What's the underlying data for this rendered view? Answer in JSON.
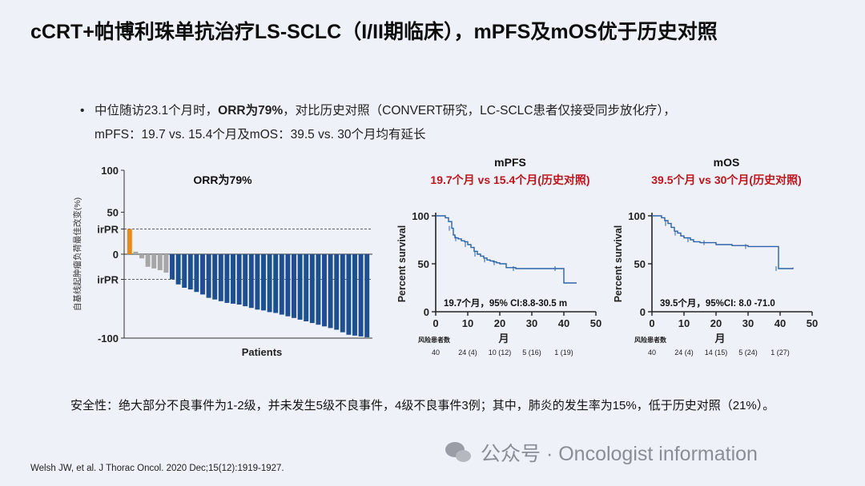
{
  "slide": {
    "title": "cCRT+帕博利珠单抗治疗LS-SCLC（I/II期临床），mPFS及mOS优于历史对照",
    "bullet": {
      "marker": "•",
      "part1": "中位随访23.1个月时，",
      "part2_bold": "ORR为79%",
      "part3": "，对比历史对照（CONVERT研究，LC-SCLC患者仅接受同步放化疗），",
      "line2": "mPFS：19.7 vs. 15.4个月及mOS：39.5 vs. 30个月均有延长"
    },
    "safety": "安全性：绝大部分不良事件为1-2级，并未发生5级不良事件，4级不良事件3例；其中，肺炎的发生率为15%，低于历史对照（21%）。",
    "reference": "Welsh JW, et al. J Thorac Oncol. 2020 Dec;15(12):1919-1927.",
    "watermark": "公众号 · Oncologist information",
    "colors": {
      "orange": "#e8891c",
      "gray": "#a6a6a6",
      "blue": "#1d4f91",
      "red": "#c0141c",
      "line": "#2b62a8"
    }
  },
  "chart_data": [
    {
      "type": "bar",
      "title": "ORR为79%",
      "xlabel": "Patients",
      "ylabel": "自基线起肿瘤负荷最佳改变(%)",
      "ylim": [
        -100,
        100
      ],
      "yticks": [
        "100",
        "50",
        "irPR",
        "0",
        "irPR",
        "-100"
      ],
      "reference_lines": [
        30,
        -30
      ],
      "values": [
        30,
        3,
        -5,
        -15,
        -17,
        -19,
        -22,
        -30,
        -36,
        -40,
        -42,
        -45,
        -48,
        -52,
        -54,
        -56,
        -58,
        -59,
        -60,
        -62,
        -64,
        -66,
        -67,
        -69,
        -70,
        -72,
        -74,
        -76,
        -78,
        -80,
        -82,
        -84,
        -86,
        -88,
        -90,
        -93,
        -96,
        -97,
        -98,
        -99
      ],
      "bar_colors": [
        "orange",
        "gray",
        "gray",
        "gray",
        "gray",
        "gray",
        "gray",
        "blue",
        "blue",
        "blue",
        "blue",
        "blue",
        "blue",
        "blue",
        "blue",
        "blue",
        "blue",
        "blue",
        "blue",
        "blue",
        "blue",
        "blue",
        "blue",
        "blue",
        "blue",
        "blue",
        "blue",
        "blue",
        "blue",
        "blue",
        "blue",
        "blue",
        "blue",
        "blue",
        "blue",
        "blue",
        "blue",
        "blue",
        "blue",
        "blue"
      ]
    },
    {
      "type": "line",
      "title": "mPFS",
      "subtitle": "19.7个月 vs 15.4个月(历史对照)",
      "xlabel": "月",
      "ylabel": "Percent survival",
      "xlim": [
        0,
        50
      ],
      "ylim": [
        0,
        100
      ],
      "xticks": [
        "0",
        "10",
        "20",
        "30",
        "40",
        "50"
      ],
      "yticks": [
        "0",
        "50",
        "100"
      ],
      "annotation": "19.7个月，95% CI:8.8-30.5 m",
      "risk_label": "风险患者数",
      "risk_table": [
        "40",
        "24 (4)",
        "10 (12)",
        "5 (16)",
        "1 (19)"
      ],
      "x": [
        0,
        3,
        4,
        5,
        5.5,
        6,
        7,
        8,
        9,
        10,
        11,
        12,
        13,
        14,
        15,
        16,
        17,
        18,
        19,
        20,
        22,
        25,
        30,
        35,
        38,
        40,
        44
      ],
      "y": [
        100,
        98,
        94,
        87,
        80,
        77,
        76,
        74,
        73,
        70,
        67,
        63,
        60,
        58,
        56,
        54,
        53,
        52,
        51,
        50,
        46,
        45,
        45,
        45,
        45,
        30,
        30
      ]
    },
    {
      "type": "line",
      "title": "mOS",
      "subtitle": "39.5个月 vs 30个月(历史对照)",
      "xlabel": "月",
      "ylabel": "Percent survival",
      "xlim": [
        0,
        50
      ],
      "ylim": [
        0,
        100
      ],
      "xticks": [
        "0",
        "10",
        "20",
        "30",
        "40",
        "50"
      ],
      "yticks": [
        "0",
        "50",
        "100"
      ],
      "annotation": "39.5个月，95%CI: 8.0 -71.0",
      "risk_label": "风险患者数",
      "risk_table": [
        "40",
        "24 (4)",
        "14 (15)",
        "5 (24)",
        "1 (27)"
      ],
      "x": [
        0,
        3,
        4,
        5,
        6,
        7,
        8,
        9,
        10,
        12,
        13,
        15,
        17,
        20,
        25,
        30,
        35,
        39,
        39.5,
        42,
        44
      ],
      "y": [
        100,
        98,
        95,
        92,
        88,
        84,
        82,
        79,
        77,
        75,
        73,
        72,
        72,
        70,
        69,
        68,
        68,
        68,
        45,
        45,
        46
      ]
    }
  ]
}
